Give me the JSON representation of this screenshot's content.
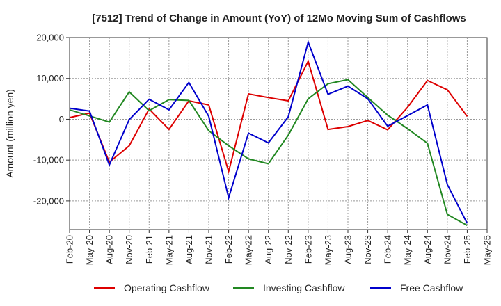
{
  "chart_data": {
    "type": "line",
    "title": "[7512]  Trend of Change in Amount (YoY) of 12Mo Moving Sum of Cashflows",
    "xlabel": "",
    "ylabel": "Amount (million yen)",
    "ylim": [
      -27000,
      20000
    ],
    "yticks": [
      20000,
      10000,
      0,
      -10000,
      -20000
    ],
    "ytick_labels": [
      "20,000",
      "10,000",
      "0",
      "-10,000",
      "-20,000"
    ],
    "x": [
      "Feb-20",
      "May-20",
      "Aug-20",
      "Nov-20",
      "Feb-21",
      "May-21",
      "Aug-21",
      "Nov-21",
      "Feb-22",
      "May-22",
      "Aug-22",
      "Nov-22",
      "Feb-23",
      "May-23",
      "Aug-23",
      "Nov-23",
      "Feb-24",
      "May-24",
      "Aug-24",
      "Nov-24",
      "Feb-25",
      "May-25"
    ],
    "legend_position": "bottom",
    "grid": true,
    "series": [
      {
        "name": "Operating Cashflow",
        "color": "#dd0000",
        "values": [
          400,
          1500,
          -10500,
          -6500,
          2500,
          -2500,
          4500,
          3500,
          -12800,
          6200,
          5300,
          4500,
          14200,
          -2500,
          -1800,
          -300,
          -2600,
          2900,
          9500,
          7200,
          700,
          null
        ]
      },
      {
        "name": "Investing Cashflow",
        "color": "#228822",
        "values": [
          2300,
          800,
          -700,
          6700,
          2100,
          4800,
          4600,
          -2800,
          -6500,
          -9700,
          -10900,
          -3900,
          5000,
          8700,
          9700,
          5300,
          1000,
          -2300,
          -5900,
          -23300,
          -26000,
          null
        ]
      },
      {
        "name": "Free Cashflow",
        "color": "#0000cc",
        "values": [
          2700,
          2000,
          -11200,
          -100,
          4900,
          2300,
          9000,
          700,
          -19200,
          -3400,
          -5800,
          600,
          18900,
          6100,
          8100,
          5000,
          -1700,
          900,
          3500,
          -16000,
          -25500,
          null
        ]
      }
    ]
  }
}
